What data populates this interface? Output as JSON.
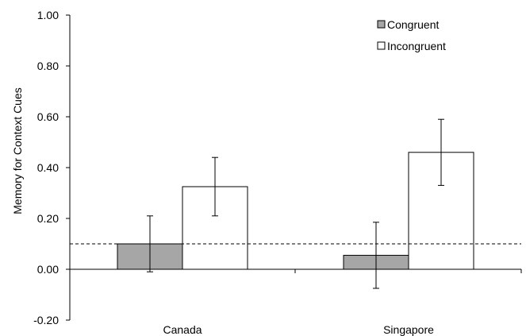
{
  "chart_data": {
    "type": "bar",
    "title": "",
    "xlabel": "",
    "ylabel": "Memory for Context Cues",
    "ylim": [
      -0.2,
      1.0
    ],
    "yticks": [
      "1.00",
      "0.80",
      "0.60",
      "0.40",
      "0.20",
      "0.00",
      "-0.20"
    ],
    "ytick_values": [
      1.0,
      0.8,
      0.6,
      0.4,
      0.2,
      0.0,
      -0.2
    ],
    "categories": [
      "Canada",
      "Singapore"
    ],
    "series": [
      {
        "name": "Congruent",
        "color": "#a6a6a6",
        "values": [
          0.1,
          0.055
        ],
        "error_low": [
          -0.01,
          -0.075
        ],
        "error_high": [
          0.21,
          0.185
        ]
      },
      {
        "name": "Incongruent",
        "color": "#ffffff",
        "values": [
          0.325,
          0.46
        ],
        "error_low": [
          0.21,
          0.33
        ],
        "error_high": [
          0.44,
          0.59
        ]
      }
    ],
    "reference_line": {
      "value": 0.1,
      "style": "dashed"
    },
    "legend": {
      "position": "top-right"
    },
    "grid": false
  }
}
